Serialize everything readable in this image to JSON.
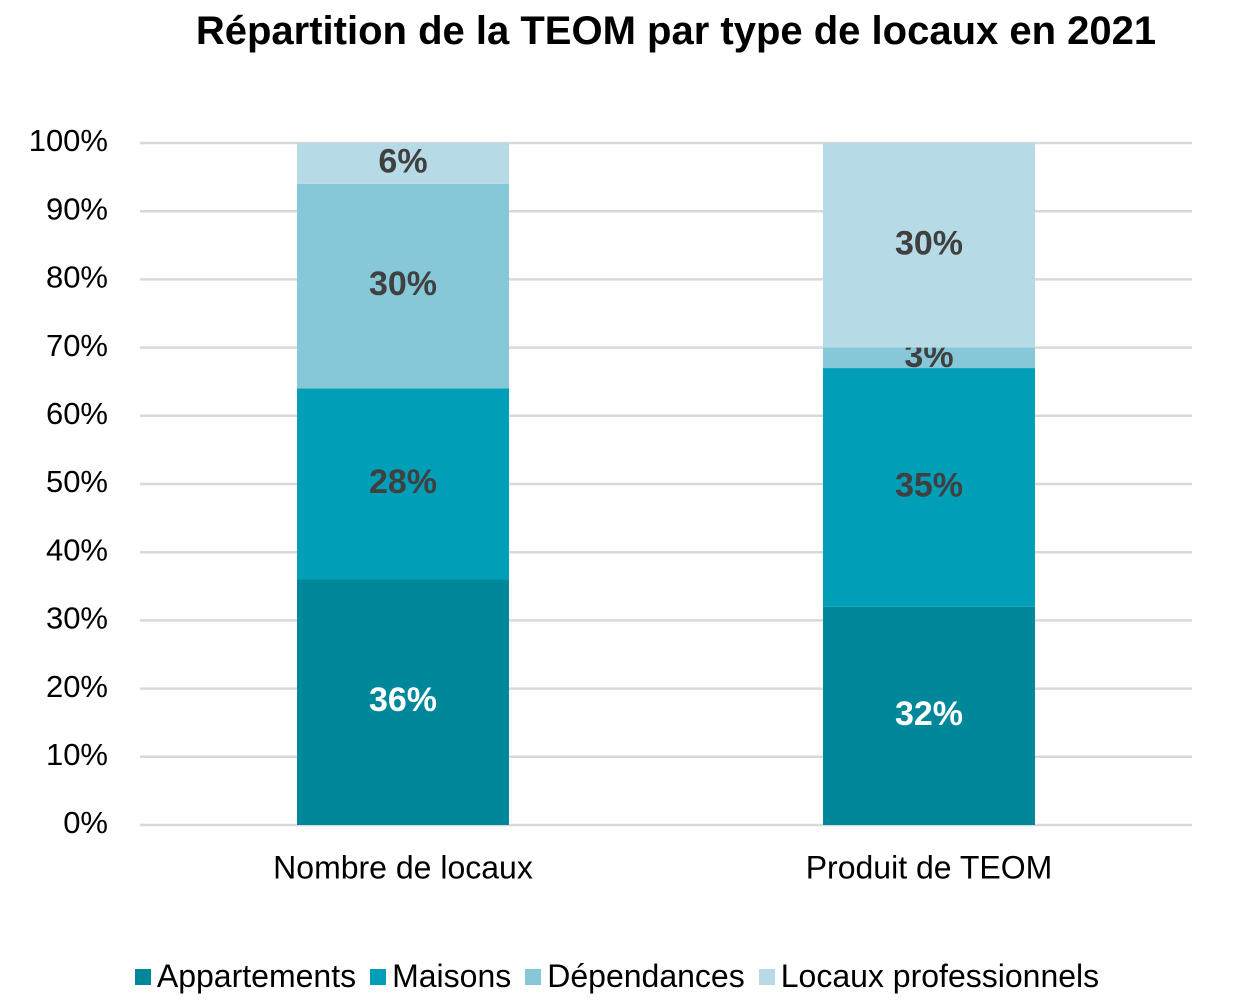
{
  "chart_data": {
    "type": "stacked_bar",
    "title": "Répartition de la TEOM par type de locaux en 2021",
    "categories": [
      "Nombre de locaux",
      "Produit de TEOM"
    ],
    "series": [
      {
        "name": "Appartements",
        "color": "#00889a",
        "values": [
          36,
          32
        ],
        "value_labels": [
          "36%",
          "32%"
        ]
      },
      {
        "name": "Maisons",
        "color": "#009fb7",
        "values": [
          28,
          35
        ],
        "value_labels": [
          "28%",
          "35%"
        ]
      },
      {
        "name": "Dépendances",
        "color": "#86c8d8",
        "values": [
          30,
          3
        ],
        "value_labels": [
          "30%",
          "3%"
        ]
      },
      {
        "name": "Locaux professionnels",
        "color": "#b6dbe6",
        "values": [
          6,
          30
        ],
        "value_labels": [
          "6%",
          "30%"
        ]
      }
    ],
    "ylim": [
      0,
      100
    ],
    "yticks": [
      {
        "value": 0,
        "label": "0%"
      },
      {
        "value": 10,
        "label": "10%"
      },
      {
        "value": 20,
        "label": "20%"
      },
      {
        "value": 30,
        "label": "30%"
      },
      {
        "value": 40,
        "label": "40%"
      },
      {
        "value": 50,
        "label": "50%"
      },
      {
        "value": 60,
        "label": "60%"
      },
      {
        "value": 70,
        "label": "70%"
      },
      {
        "value": 80,
        "label": "80%"
      },
      {
        "value": 90,
        "label": "90%"
      },
      {
        "value": 100,
        "label": "100%"
      }
    ],
    "grid": true,
    "legend": "bottom"
  }
}
